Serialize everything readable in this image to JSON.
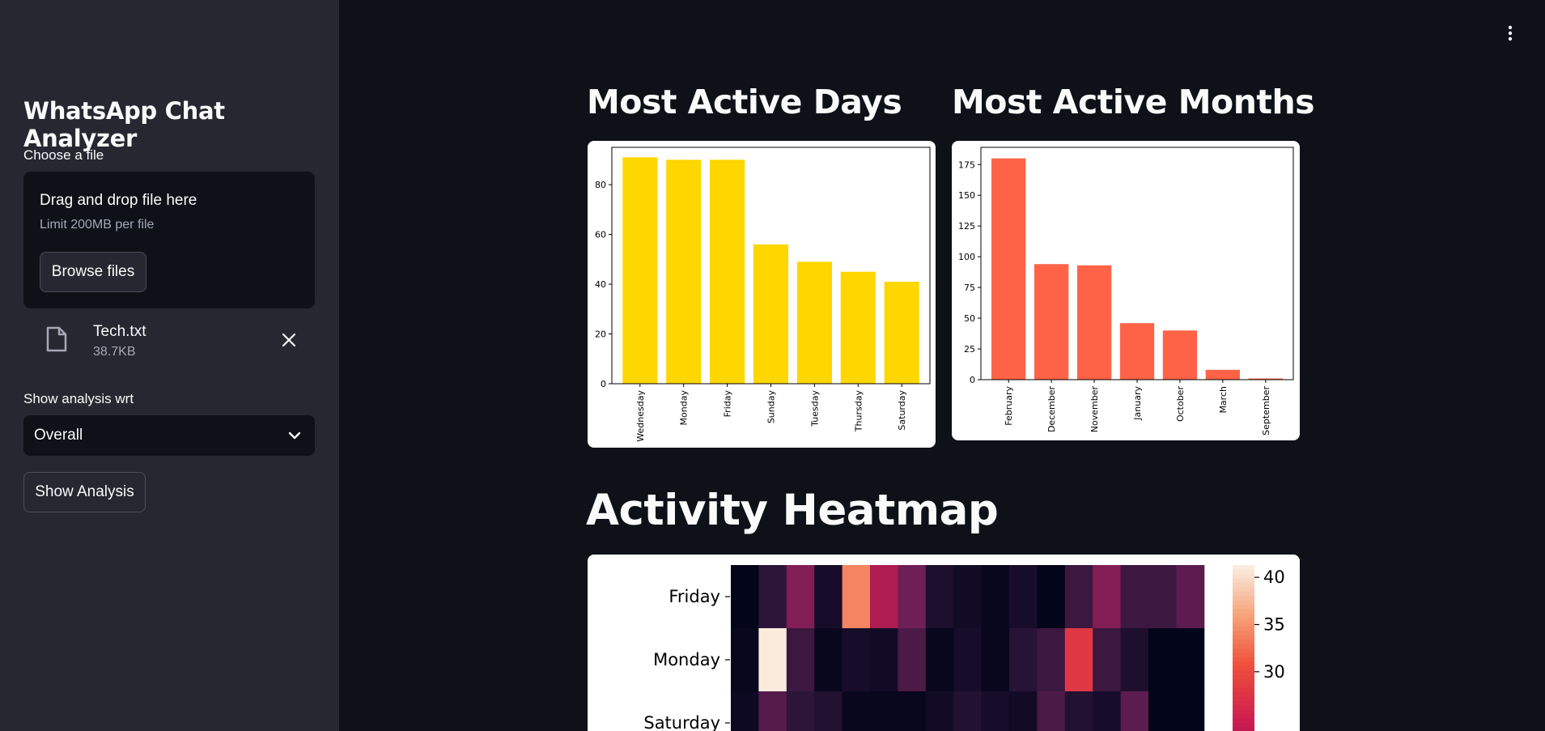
{
  "sidebar": {
    "title": "WhatsApp Chat Analyzer",
    "file_label": "Choose a file",
    "dropzone": {
      "title": "Drag and drop file here",
      "limit": "Limit 200MB per file",
      "browse_label": "Browse files"
    },
    "uploaded_file": {
      "name": "Tech.txt",
      "size": "38.7KB"
    },
    "analysis_label": "Show analysis wrt",
    "analysis_select": {
      "value": "Overall"
    },
    "show_button_label": "Show Analysis"
  },
  "main": {
    "days_title": "Most Active Days",
    "months_title": "Most Active Months",
    "heatmap_title": "Activity Heatmap"
  },
  "icons": {
    "file": "file-icon",
    "close": "close-icon",
    "chevron": "chevron-down-icon",
    "menu": "kebab-menu-icon"
  },
  "chart_data": [
    {
      "type": "bar",
      "categories": [
        "Wednesday",
        "Monday",
        "Friday",
        "Sunday",
        "Tuesday",
        "Thursday",
        "Saturday"
      ],
      "values": [
        91,
        90,
        90,
        56,
        49,
        45,
        41
      ],
      "ylim": [
        0,
        95
      ],
      "yticks": [
        0,
        20,
        40,
        60,
        80
      ],
      "color": "#ffd700"
    },
    {
      "type": "bar",
      "categories": [
        "February",
        "December",
        "November",
        "January",
        "October",
        "March",
        "September"
      ],
      "values": [
        180,
        94,
        93,
        46,
        40,
        8,
        1
      ],
      "ylim": [
        0,
        189
      ],
      "yticks": [
        0,
        25,
        50,
        75,
        100,
        125,
        150,
        175
      ],
      "color": "#ff6347"
    },
    {
      "type": "heatmap",
      "rows": [
        "Friday",
        "Monday",
        "Saturday"
      ],
      "colorbar_ticks": [
        30,
        35,
        40
      ],
      "values": [
        [
          0,
          8,
          18,
          4,
          34,
          22,
          16,
          5,
          3,
          1,
          4,
          0,
          10,
          18,
          10,
          10,
          14
        ],
        [
          1,
          41,
          10,
          1,
          4,
          3,
          12,
          1,
          4,
          1,
          7,
          10,
          28,
          10,
          5,
          0,
          0
        ],
        [
          2,
          13,
          8,
          6,
          1,
          1,
          1,
          3,
          6,
          4,
          3,
          12,
          6,
          4,
          14,
          0,
          0
        ]
      ]
    }
  ]
}
